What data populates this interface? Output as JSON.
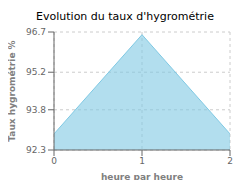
{
  "chart_data": {
    "type": "area",
    "title": "Evolution du taux d'hygrométrie",
    "xlabel": "heure par heure",
    "ylabel": "Taux hygrométrie %",
    "x": [
      0,
      1,
      2
    ],
    "values": [
      92.9,
      96.6,
      92.9
    ],
    "xlim": [
      0,
      2
    ],
    "ylim": [
      92.3,
      96.7
    ],
    "xticks": [
      0,
      1,
      2
    ],
    "yticks": [
      92.3,
      93.8,
      95.2,
      96.7
    ],
    "grid": true,
    "color": "#7ec8e3"
  }
}
